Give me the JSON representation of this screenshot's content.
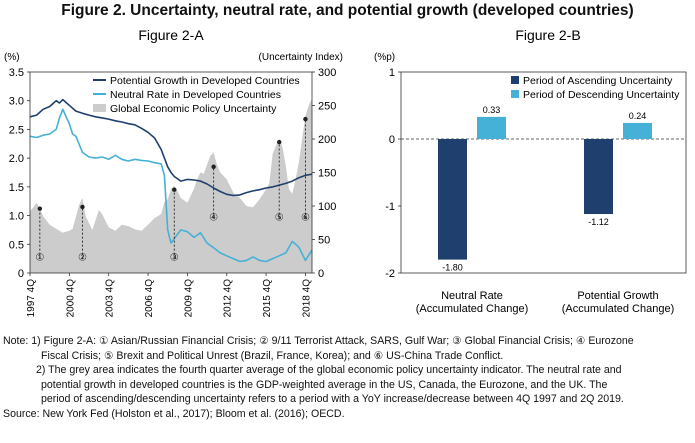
{
  "figure_title": "Figure 2. Uncertainty, neutral rate, and potential growth (developed countries)",
  "notes": {
    "line1": "Note: 1) Figure 2-A: ① Asian/Russian Financial Crisis; ② 9/11 Terrorist Attack, SARS, Gulf War; ③ Global Financial Crisis; ④ Eurozone",
    "line1b": "Fiscal Crisis; ⑤ Brexit and Political Unrest (Brazil, France, Korea); and ⑥ US-China Trade Conflict.",
    "line2": "2) The grey area indicates the fourth quarter average of the global economic policy uncertainty indicator. The neutral rate and",
    "line2b": "potential growth in developed countries is the GDP-weighted average in the US, Canada, the Eurozone, and the UK. The",
    "line2c": "period of ascending/descending uncertainty refers to a period with a YoY increase/decrease between 4Q 1997 and 2Q 2019.",
    "source": "Source: New York Fed (Holston et al., 2017); Bloom et al. (2016); OECD."
  },
  "colors": {
    "potential": "#1f3f6e",
    "neutral": "#46b1d6",
    "uncertainty": "#cccccc",
    "ascending": "#1f3f6e",
    "descending": "#46b1d6"
  },
  "chart_data": [
    {
      "type": "line",
      "title": "Figure 2-A",
      "ylabel_left": "(%)",
      "ylabel_right": "(Uncertainty Index)",
      "ylim_left": [
        0,
        3.5
      ],
      "ylim_right": [
        0,
        300
      ],
      "left_ticks": [
        "0",
        "0.5",
        "1.0",
        "1.5",
        "2.0",
        "2.5",
        "3.0",
        "3.5"
      ],
      "right_ticks": [
        "0",
        "50",
        "100",
        "150",
        "200",
        "250",
        "300"
      ],
      "x_ticks": [
        "1997 4Q",
        "2000 4Q",
        "2003 4Q",
        "2006 4Q",
        "2009 4Q",
        "2012 4Q",
        "2015 4Q",
        "2018 4Q"
      ],
      "x_range": [
        1997.75,
        2019.25
      ],
      "legend_position": "top-right",
      "series": [
        {
          "name": "Potential Growth in Developed Countries",
          "axis": "left",
          "points": [
            [
              1997.75,
              2.72
            ],
            [
              1998.25,
              2.75
            ],
            [
              1998.75,
              2.85
            ],
            [
              1999.25,
              2.9
            ],
            [
              1999.75,
              3.0
            ],
            [
              2000.0,
              2.96
            ],
            [
              2000.25,
              3.02
            ],
            [
              2000.75,
              2.92
            ],
            [
              2001.25,
              2.82
            ],
            [
              2001.75,
              2.78
            ],
            [
              2002.25,
              2.75
            ],
            [
              2002.75,
              2.72
            ],
            [
              2003.25,
              2.7
            ],
            [
              2003.75,
              2.68
            ],
            [
              2004.25,
              2.65
            ],
            [
              2004.75,
              2.63
            ],
            [
              2005.25,
              2.6
            ],
            [
              2005.75,
              2.58
            ],
            [
              2006.25,
              2.52
            ],
            [
              2006.75,
              2.45
            ],
            [
              2007.25,
              2.35
            ],
            [
              2007.75,
              2.15
            ],
            [
              2008.25,
              1.85
            ],
            [
              2008.5,
              1.75
            ],
            [
              2008.75,
              1.68
            ],
            [
              2009.25,
              1.6
            ],
            [
              2009.75,
              1.63
            ],
            [
              2010.25,
              1.62
            ],
            [
              2010.75,
              1.6
            ],
            [
              2011.25,
              1.55
            ],
            [
              2011.75,
              1.48
            ],
            [
              2012.25,
              1.42
            ],
            [
              2012.75,
              1.37
            ],
            [
              2013.25,
              1.35
            ],
            [
              2013.75,
              1.36
            ],
            [
              2014.25,
              1.4
            ],
            [
              2014.75,
              1.43
            ],
            [
              2015.25,
              1.45
            ],
            [
              2015.75,
              1.48
            ],
            [
              2016.25,
              1.5
            ],
            [
              2016.75,
              1.53
            ],
            [
              2017.25,
              1.56
            ],
            [
              2017.75,
              1.6
            ],
            [
              2018.25,
              1.66
            ],
            [
              2018.75,
              1.7
            ],
            [
              2019.25,
              1.72
            ]
          ]
        },
        {
          "name": "Neutral Rate in Developed Countries",
          "axis": "left",
          "points": [
            [
              1997.75,
              2.38
            ],
            [
              1998.25,
              2.36
            ],
            [
              1998.75,
              2.4
            ],
            [
              1999.25,
              2.42
            ],
            [
              1999.75,
              2.5
            ],
            [
              2000.0,
              2.7
            ],
            [
              2000.25,
              2.85
            ],
            [
              2000.75,
              2.6
            ],
            [
              2001.0,
              2.42
            ],
            [
              2001.25,
              2.38
            ],
            [
              2001.75,
              2.1
            ],
            [
              2002.25,
              2.02
            ],
            [
              2002.75,
              2.0
            ],
            [
              2003.25,
              2.02
            ],
            [
              2003.75,
              1.98
            ],
            [
              2004.25,
              2.05
            ],
            [
              2004.75,
              1.98
            ],
            [
              2005.25,
              1.95
            ],
            [
              2005.75,
              1.98
            ],
            [
              2006.25,
              1.96
            ],
            [
              2006.75,
              1.95
            ],
            [
              2007.25,
              1.92
            ],
            [
              2007.75,
              1.9
            ],
            [
              2008.0,
              1.7
            ],
            [
              2008.25,
              0.75
            ],
            [
              2008.5,
              0.52
            ],
            [
              2008.75,
              0.6
            ],
            [
              2009.25,
              0.75
            ],
            [
              2009.75,
              0.72
            ],
            [
              2010.25,
              0.62
            ],
            [
              2010.75,
              0.7
            ],
            [
              2011.25,
              0.52
            ],
            [
              2011.75,
              0.44
            ],
            [
              2012.25,
              0.35
            ],
            [
              2012.75,
              0.3
            ],
            [
              2013.25,
              0.25
            ],
            [
              2013.75,
              0.2
            ],
            [
              2014.25,
              0.22
            ],
            [
              2014.75,
              0.28
            ],
            [
              2015.25,
              0.22
            ],
            [
              2015.75,
              0.2
            ],
            [
              2016.25,
              0.25
            ],
            [
              2016.75,
              0.3
            ],
            [
              2017.25,
              0.35
            ],
            [
              2017.75,
              0.55
            ],
            [
              2018.25,
              0.45
            ],
            [
              2018.75,
              0.22
            ],
            [
              2019.25,
              0.4
            ]
          ]
        },
        {
          "name": "Global Economic Policy Uncertainty",
          "axis": "right",
          "type": "area",
          "points": [
            [
              1997.75,
              92
            ],
            [
              1998.0,
              98
            ],
            [
              1998.25,
              105
            ],
            [
              1998.5,
              96
            ],
            [
              1998.75,
              85
            ],
            [
              1999.25,
              72
            ],
            [
              1999.75,
              66
            ],
            [
              2000.25,
              60
            ],
            [
              2000.75,
              63
            ],
            [
              2001.0,
              66
            ],
            [
              2001.5,
              102
            ],
            [
              2001.75,
              112
            ],
            [
              2002.0,
              85
            ],
            [
              2002.5,
              64
            ],
            [
              2003.0,
              94
            ],
            [
              2003.25,
              88
            ],
            [
              2003.75,
              68
            ],
            [
              2004.25,
              63
            ],
            [
              2004.75,
              72
            ],
            [
              2005.25,
              70
            ],
            [
              2005.75,
              65
            ],
            [
              2006.25,
              63
            ],
            [
              2006.75,
              72
            ],
            [
              2007.25,
              82
            ],
            [
              2007.75,
              88
            ],
            [
              2008.0,
              106
            ],
            [
              2008.25,
              110
            ],
            [
              2008.5,
              125
            ],
            [
              2008.75,
              130
            ],
            [
              2009.0,
              122
            ],
            [
              2009.25,
              112
            ],
            [
              2009.75,
              105
            ],
            [
              2010.0,
              115
            ],
            [
              2010.25,
              126
            ],
            [
              2010.5,
              140
            ],
            [
              2010.75,
              150
            ],
            [
              2011.0,
              148
            ],
            [
              2011.5,
              175
            ],
            [
              2011.75,
              180
            ],
            [
              2012.0,
              162
            ],
            [
              2012.25,
              150
            ],
            [
              2012.75,
              140
            ],
            [
              2013.25,
              120
            ],
            [
              2013.75,
              112
            ],
            [
              2014.25,
              100
            ],
            [
              2014.75,
              98
            ],
            [
              2015.25,
              110
            ],
            [
              2015.75,
              125
            ],
            [
              2016.0,
              135
            ],
            [
              2016.25,
              178
            ],
            [
              2016.5,
              190
            ],
            [
              2016.75,
              200
            ],
            [
              2017.0,
              188
            ],
            [
              2017.25,
              160
            ],
            [
              2017.5,
              125
            ],
            [
              2017.75,
              118
            ],
            [
              2018.0,
              140
            ],
            [
              2018.25,
              165
            ],
            [
              2018.75,
              235
            ],
            [
              2019.0,
              250
            ],
            [
              2019.25,
              260
            ]
          ]
        }
      ],
      "events": [
        {
          "label": "①",
          "x": 1998.5,
          "from": 0.25,
          "to": 1.12
        },
        {
          "label": "②",
          "x": 2001.75,
          "from": 0.25,
          "to": 1.15
        },
        {
          "label": "③",
          "x": 2008.75,
          "from": 0.25,
          "to": 1.45
        },
        {
          "label": "④",
          "x": 2011.75,
          "from": 0.95,
          "to": 1.85
        },
        {
          "label": "⑤",
          "x": 2016.75,
          "from": 0.95,
          "to": 2.28
        },
        {
          "label": "⑥",
          "x": 2018.75,
          "from": 0.95,
          "to": 2.68
        }
      ]
    },
    {
      "type": "bar",
      "title": "Figure 2-B",
      "ylabel": "(%p)",
      "ylim": [
        -2,
        1
      ],
      "y_ticks": [
        "-2",
        "-1",
        "0",
        "1"
      ],
      "categories": [
        "Neutral Rate (Accumulated Change)",
        "Potential Growth (Accumulated Change)"
      ],
      "category_lines": [
        [
          "Neutral Rate",
          "(Accumulated Change)"
        ],
        [
          "Potential Growth",
          "(Accumulated Change)"
        ]
      ],
      "legend_position": "top-right",
      "series": [
        {
          "name": "Period of Ascending Uncertainty",
          "values": [
            -1.8,
            -1.12
          ],
          "labels": [
            "-1.80",
            "-1.12"
          ]
        },
        {
          "name": "Period of Descending Uncertainty",
          "values": [
            0.33,
            0.24
          ],
          "labels": [
            "0.33",
            "0.24"
          ]
        }
      ]
    }
  ]
}
